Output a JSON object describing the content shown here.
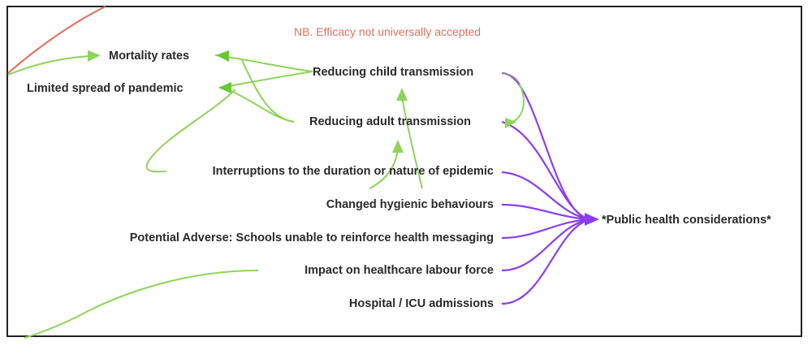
{
  "note": "NB. Efficacy not universally accepted",
  "hub": "*Public health considerations*",
  "nodes": {
    "mortality": "Mortality rates",
    "limited_spread": "Limited spread of pandemic",
    "child_transmission": "Reducing child transmission",
    "adult_transmission": "Reducing adult transmission",
    "interruptions": "Interruptions to the duration or nature of epidemic",
    "hygienic": "Changed hygienic behaviours",
    "adverse": "Potential Adverse: Schools unable to reinforce health messaging",
    "healthcare": "Impact on healthcare  labour force",
    "hospital": "Hospital / ICU admissions"
  },
  "colors": {
    "purple": "#8a3ff0",
    "green": "#8fd45a",
    "dark_green": "#66c933",
    "red": "#e0705a",
    "text": "#2a2a2a"
  }
}
